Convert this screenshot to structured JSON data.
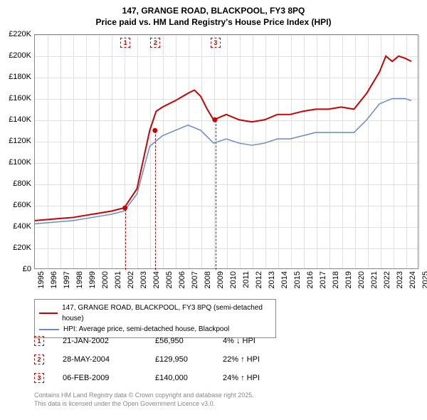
{
  "title": {
    "line1": "147, GRANGE ROAD, BLACKPOOL, FY3 8PQ",
    "line2": "Price paid vs. HM Land Registry's House Price Index (HPI)"
  },
  "chart": {
    "type": "line",
    "background_color": "#ffffff",
    "grid_color": "#e0e0e0",
    "border_color": "#888888",
    "x_axis": {
      "min": 1995,
      "max": 2025,
      "tick_step": 1,
      "labels": [
        "1995",
        "1996",
        "1997",
        "1998",
        "1999",
        "2000",
        "2001",
        "2002",
        "2003",
        "2004",
        "2005",
        "2006",
        "2007",
        "2008",
        "2009",
        "2010",
        "2011",
        "2012",
        "2013",
        "2014",
        "2015",
        "2016",
        "2017",
        "2018",
        "2019",
        "2020",
        "2021",
        "2022",
        "2023",
        "2024",
        "2025"
      ],
      "label_rotation": -90,
      "label_fontsize": 11
    },
    "y_axis": {
      "min": 0,
      "max": 220000,
      "tick_step": 20000,
      "labels": [
        "£0",
        "£20K",
        "£40K",
        "£60K",
        "£80K",
        "£100K",
        "£120K",
        "£140K",
        "£160K",
        "£180K",
        "£200K",
        "£220K"
      ],
      "label_fontsize": 11
    },
    "series": [
      {
        "name": "147, GRANGE ROAD, BLACKPOOL, FY3 8PQ (semi-detached house)",
        "color": "#cc0000",
        "line_width": 2,
        "data": [
          [
            1995,
            45000
          ],
          [
            1996,
            46000
          ],
          [
            1997,
            47000
          ],
          [
            1998,
            48000
          ],
          [
            1999,
            50000
          ],
          [
            2000,
            52000
          ],
          [
            2001,
            54000
          ],
          [
            2002,
            57000
          ],
          [
            2003,
            75000
          ],
          [
            2004,
            130000
          ],
          [
            2004.5,
            148000
          ],
          [
            2005,
            152000
          ],
          [
            2006,
            158000
          ],
          [
            2007,
            165000
          ],
          [
            2007.5,
            168000
          ],
          [
            2008,
            162000
          ],
          [
            2008.5,
            150000
          ],
          [
            2009,
            140000
          ],
          [
            2010,
            145000
          ],
          [
            2011,
            140000
          ],
          [
            2012,
            138000
          ],
          [
            2013,
            140000
          ],
          [
            2014,
            145000
          ],
          [
            2015,
            145000
          ],
          [
            2016,
            148000
          ],
          [
            2017,
            150000
          ],
          [
            2018,
            150000
          ],
          [
            2019,
            152000
          ],
          [
            2020,
            150000
          ],
          [
            2021,
            165000
          ],
          [
            2022,
            185000
          ],
          [
            2022.5,
            200000
          ],
          [
            2023,
            195000
          ],
          [
            2023.5,
            200000
          ],
          [
            2024,
            198000
          ],
          [
            2024.5,
            195000
          ]
        ]
      },
      {
        "name": "HPI: Average price, semi-detached house, Blackpool",
        "color": "#6a8bc4",
        "line_width": 1.5,
        "data": [
          [
            1995,
            42000
          ],
          [
            1996,
            43000
          ],
          [
            1997,
            44000
          ],
          [
            1998,
            45000
          ],
          [
            1999,
            47000
          ],
          [
            2000,
            49000
          ],
          [
            2001,
            51000
          ],
          [
            2002,
            54000
          ],
          [
            2003,
            70000
          ],
          [
            2004,
            115000
          ],
          [
            2005,
            125000
          ],
          [
            2006,
            130000
          ],
          [
            2007,
            135000
          ],
          [
            2008,
            130000
          ],
          [
            2009,
            118000
          ],
          [
            2010,
            122000
          ],
          [
            2011,
            118000
          ],
          [
            2012,
            116000
          ],
          [
            2013,
            118000
          ],
          [
            2014,
            122000
          ],
          [
            2015,
            122000
          ],
          [
            2016,
            125000
          ],
          [
            2017,
            128000
          ],
          [
            2018,
            128000
          ],
          [
            2019,
            128000
          ],
          [
            2020,
            128000
          ],
          [
            2021,
            140000
          ],
          [
            2022,
            155000
          ],
          [
            2023,
            160000
          ],
          [
            2024,
            160000
          ],
          [
            2024.5,
            158000
          ]
        ]
      }
    ],
    "markers": [
      {
        "id": "1",
        "x": 2002.06,
        "y": 56950
      },
      {
        "id": "2",
        "x": 2004.41,
        "y": 129950
      },
      {
        "id": "3",
        "x": 2009.1,
        "y": 140000
      }
    ],
    "marker_style": {
      "border_color": "#cc0000",
      "border_style": "dashed",
      "text_color": "#cc0000",
      "box_size": 14
    }
  },
  "legend": {
    "items": [
      {
        "color": "#cc0000",
        "label": "147, GRANGE ROAD, BLACKPOOL, FY3 8PQ (semi-detached house)"
      },
      {
        "color": "#6a8bc4",
        "label": "HPI: Average price, semi-detached house, Blackpool"
      }
    ]
  },
  "sales": [
    {
      "id": "1",
      "date": "21-JAN-2002",
      "price": "£56,950",
      "hpi_pct": "4%",
      "arrow": "↓",
      "hpi_label": "HPI"
    },
    {
      "id": "2",
      "date": "28-MAY-2004",
      "price": "£129,950",
      "hpi_pct": "22%",
      "arrow": "↑",
      "hpi_label": "HPI"
    },
    {
      "id": "3",
      "date": "06-FEB-2009",
      "price": "£140,000",
      "hpi_pct": "24%",
      "arrow": "↑",
      "hpi_label": "HPI"
    }
  ],
  "footer": {
    "line1": "Contains HM Land Registry data © Crown copyright and database right 2025.",
    "line2": "This data is licensed under the Open Government Licence v3.0."
  }
}
